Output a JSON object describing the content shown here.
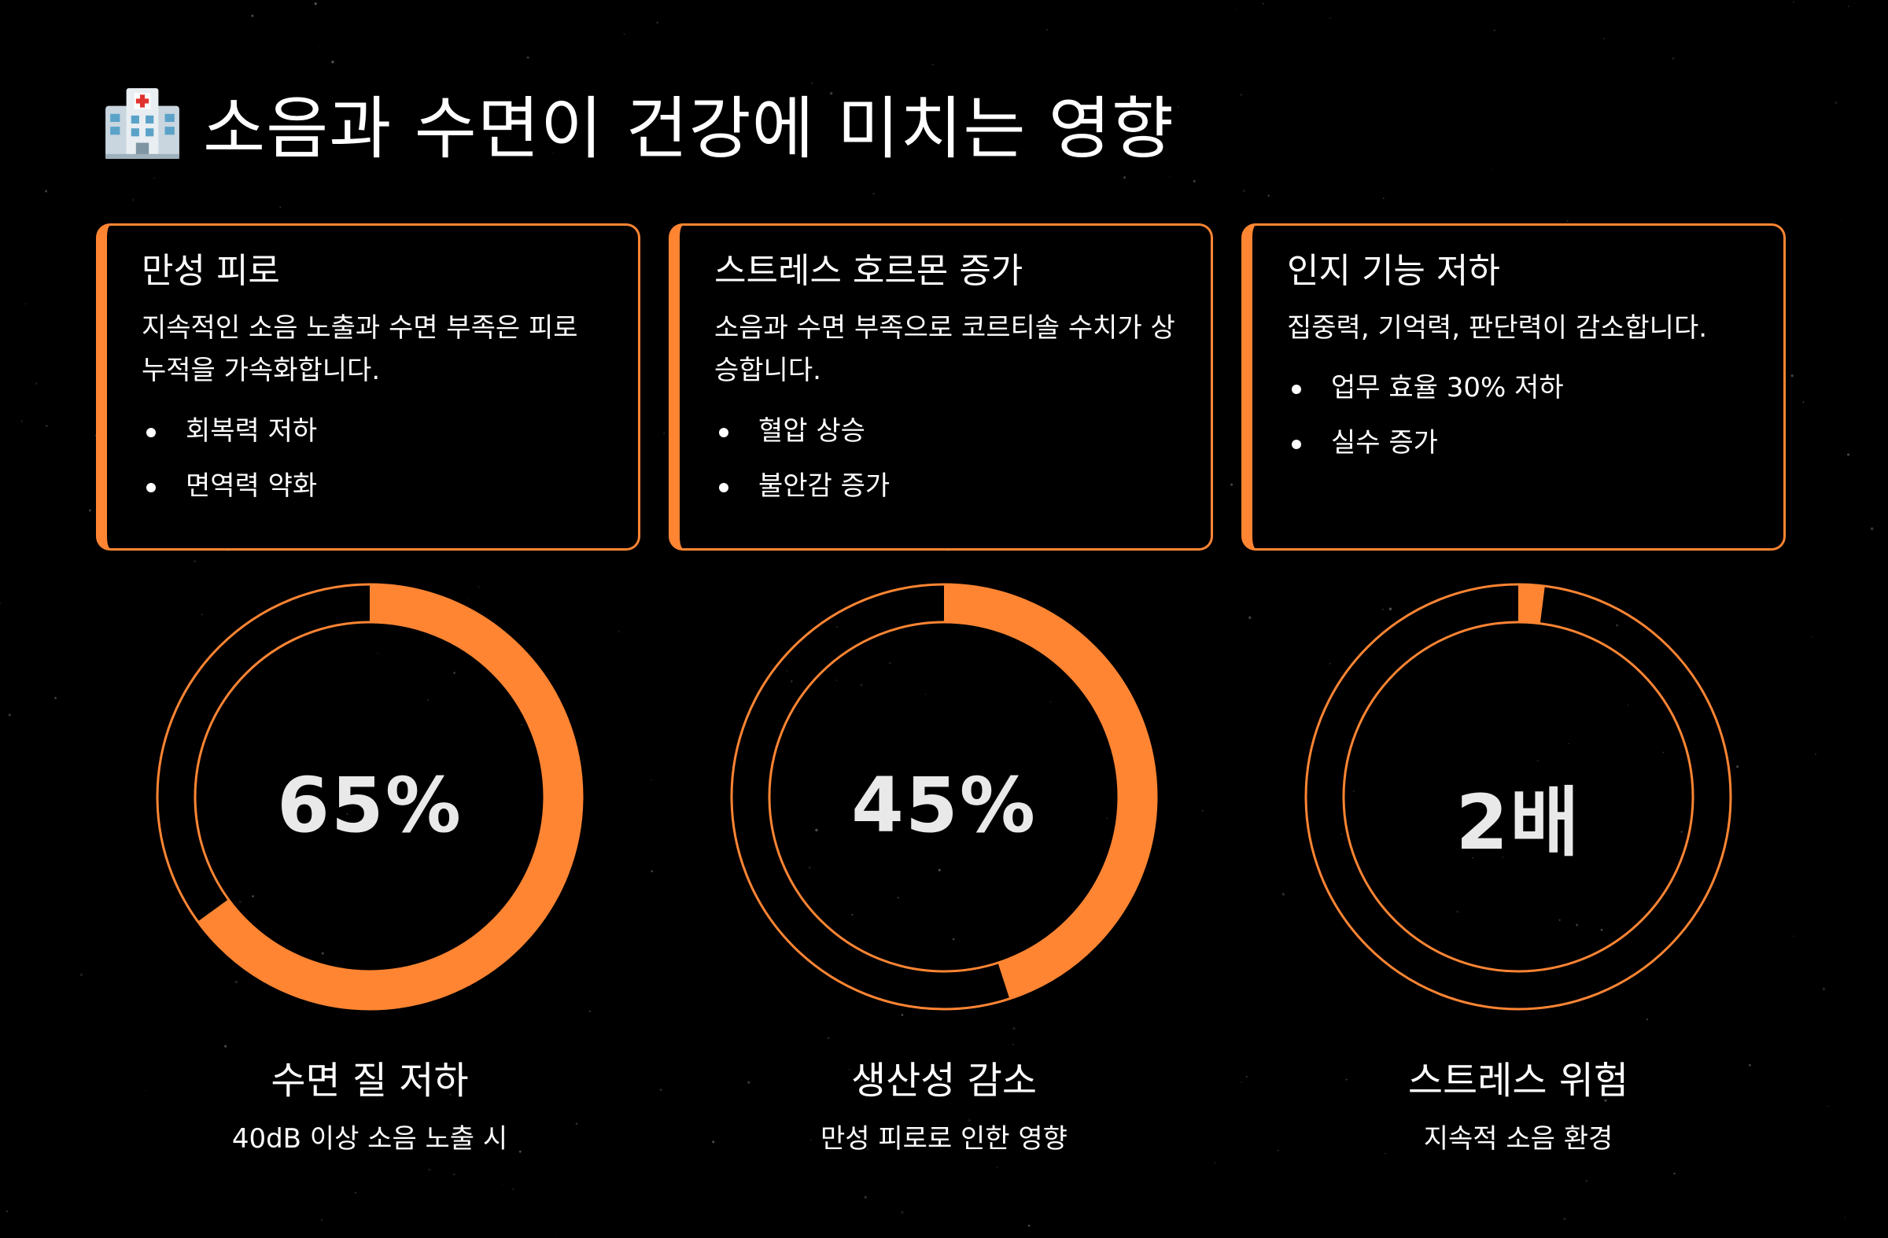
{
  "header": {
    "icon": "hospital-icon",
    "title": "소음과 수면이 건강에 미치는 영향"
  },
  "colors": {
    "background": "#000000",
    "accent": "#ff8533",
    "text": "#ffffff",
    "stat_text": "#e9e9e9"
  },
  "cards": [
    {
      "title": "만성 피로",
      "description": "지속적인 소음 노출과 수면 부족은 피로 누적을 가속화합니다.",
      "bullets": [
        "회복력 저하",
        "면역력 약화"
      ]
    },
    {
      "title": "스트레스 호르몬 증가",
      "description": "소음과 수면 부족으로 코르티솔 수치가 상승합니다.",
      "bullets": [
        "혈압 상승",
        "불안감 증가"
      ]
    },
    {
      "title": "인지 기능 저하",
      "description": "집중력, 기억력, 판단력이 감소합니다.",
      "bullets": [
        "업무 효율 30% 저하",
        "실수 증가"
      ]
    }
  ],
  "stats": [
    {
      "value": "65%",
      "label": "수면 질 저하",
      "sub": "40dB 이상 소음 노출 시",
      "fill_fraction": 0.65
    },
    {
      "value": "45%",
      "label": "생산성 감소",
      "sub": "만성 피로로 인한 영향",
      "fill_fraction": 0.45
    },
    {
      "value": "2배",
      "label": "스트레스 위험",
      "sub": "지속적 소음 환경",
      "fill_fraction": 0.02
    }
  ]
}
